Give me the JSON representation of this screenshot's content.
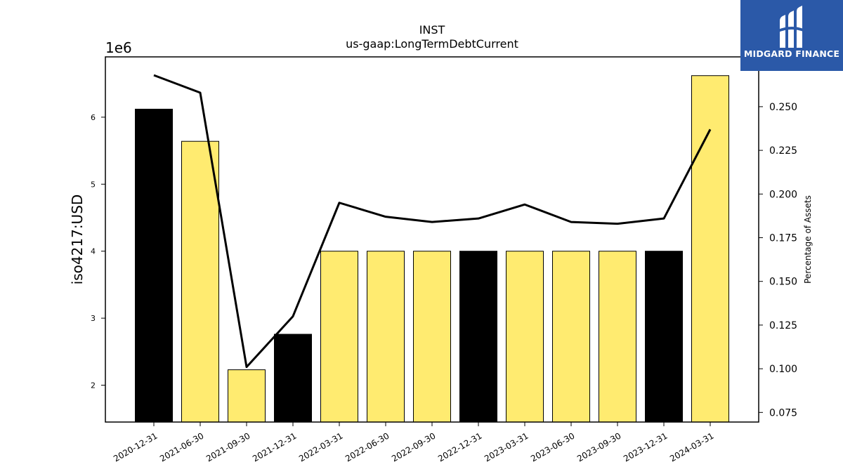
{
  "chart_data": {
    "type": "bar",
    "title": "INST",
    "subtitle": "us-gaap:LongTermDebtCurrent",
    "ylabel": "iso4217:USD",
    "y2label": "Percentage of Assets",
    "y_offset_label": "1e6",
    "categories": [
      "2020-12-31",
      "2021-06-30",
      "2021-09-30",
      "2021-12-31",
      "2022-03-31",
      "2022-06-30",
      "2022-09-30",
      "2022-12-31",
      "2023-03-31",
      "2023-06-30",
      "2023-09-30",
      "2023-12-31",
      "2024-03-31"
    ],
    "series": [
      {
        "kind": "bar",
        "axis": "left",
        "values": [
          6120000,
          5640000,
          2230000,
          2760000,
          4000000,
          4000000,
          4000000,
          4000000,
          4000000,
          4000000,
          4000000,
          4000000,
          6620000
        ],
        "colors": [
          "#000000",
          "#ffeb70",
          "#ffeb70",
          "#000000",
          "#ffeb70",
          "#ffeb70",
          "#ffeb70",
          "#000000",
          "#ffeb70",
          "#ffeb70",
          "#ffeb70",
          "#000000",
          "#ffeb70"
        ]
      },
      {
        "kind": "line",
        "axis": "right",
        "values": [
          0.268,
          0.258,
          0.101,
          0.13,
          0.195,
          0.187,
          0.184,
          0.186,
          0.194,
          0.184,
          0.183,
          0.186,
          0.237
        ]
      }
    ],
    "ylim": [
      1450000,
      6900000
    ],
    "y2lim": [
      0.0695,
      0.2785
    ],
    "yticks": [
      2,
      3,
      4,
      5,
      6
    ],
    "y2ticks": [
      "0.075",
      "0.100",
      "0.125",
      "0.150",
      "0.175",
      "0.200",
      "0.225",
      "0.250"
    ],
    "grid": false,
    "legend": "none"
  },
  "logo": {
    "text": "MIDGARD FINANCE",
    "icon": "midgard-logo-icon"
  },
  "colors": {
    "bar_black": "#000000",
    "bar_yellow": "#ffeb70",
    "line": "#000000",
    "logo_bg": "#2b59a8"
  }
}
